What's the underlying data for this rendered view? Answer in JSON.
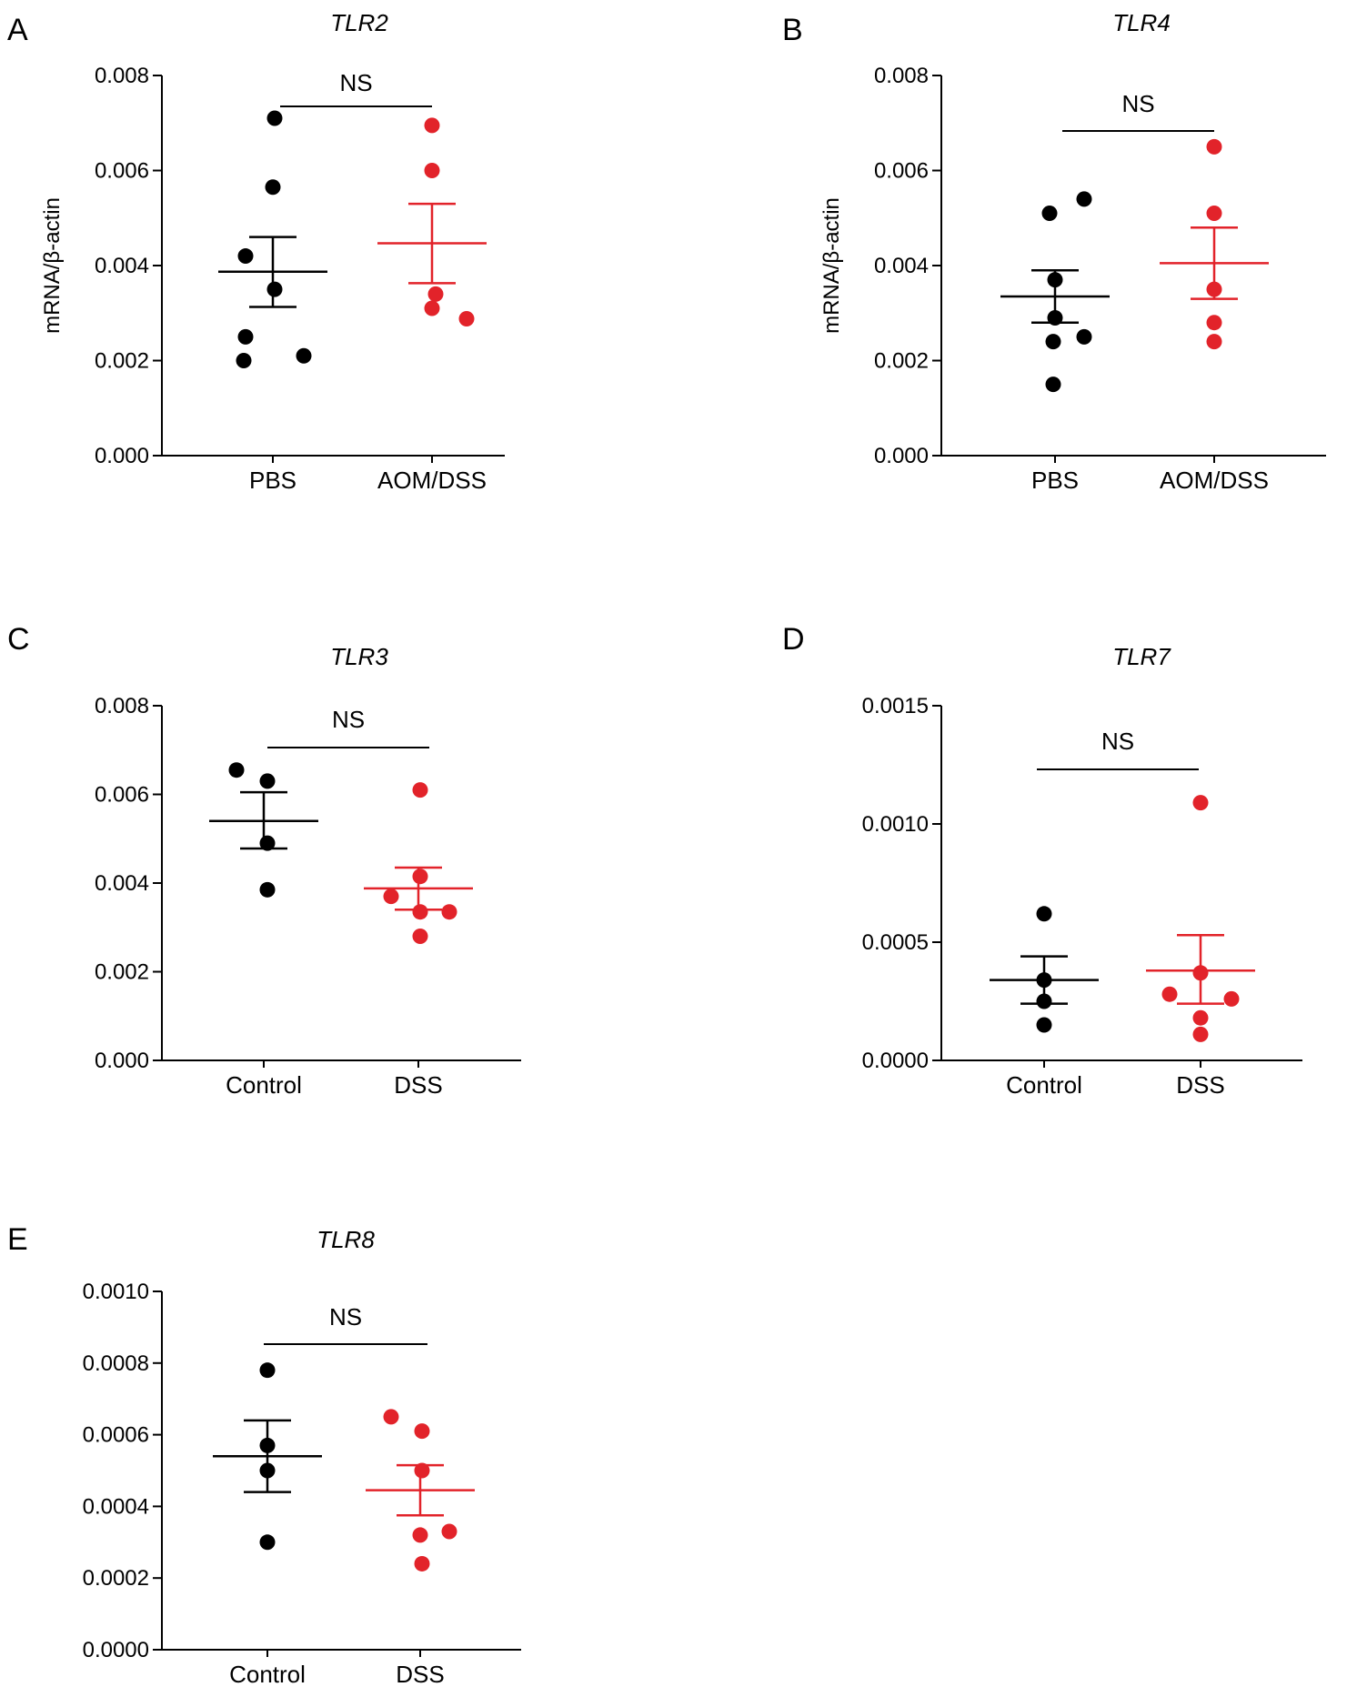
{
  "chart_data": [
    {
      "type": "scatter",
      "panel": "A",
      "title": "TLR2",
      "ylabel": "mRNA/β-actin",
      "categories": [
        "PBS",
        "AOM/DSS"
      ],
      "ylim": [
        0,
        0.008
      ],
      "yticks": [
        "0.000",
        "0.002",
        "0.004",
        "0.006",
        "0.008"
      ],
      "series": [
        {
          "points": [
            0.0071,
            0.00565,
            0.0042,
            0.0035,
            0.0025,
            0.0021,
            0.002
          ],
          "mean": 0.00387,
          "sem": [
            0.00313,
            0.0046
          ]
        },
        {
          "points": [
            0.00695,
            0.006,
            0.0034,
            0.0031,
            0.00288
          ],
          "mean": 0.00447,
          "sem": [
            0.00363,
            0.0053
          ]
        }
      ],
      "significance": "NS",
      "colors": [
        "#000000",
        "#e2232a"
      ]
    },
    {
      "type": "scatter",
      "panel": "B",
      "title": "TLR4",
      "ylabel": "mRNA/β-actin",
      "categories": [
        "PBS",
        "AOM/DSS"
      ],
      "ylim": [
        0,
        0.008
      ],
      "yticks": [
        "0.000",
        "0.002",
        "0.004",
        "0.006",
        "0.008"
      ],
      "series": [
        {
          "points": [
            0.0054,
            0.0051,
            0.0037,
            0.0029,
            0.0025,
            0.0024,
            0.0015
          ],
          "mean": 0.00335,
          "sem": [
            0.0028,
            0.0039
          ]
        },
        {
          "points": [
            0.0065,
            0.0051,
            0.0035,
            0.0028,
            0.0024
          ],
          "mean": 0.00405,
          "sem": [
            0.0033,
            0.0048
          ]
        }
      ],
      "significance": "NS",
      "colors": [
        "#000000",
        "#e2232a"
      ]
    },
    {
      "type": "scatter",
      "panel": "C",
      "title": "TLR3",
      "ylabel": "",
      "categories": [
        "Control",
        "DSS"
      ],
      "ylim": [
        0,
        0.008
      ],
      "yticks": [
        "0.000",
        "0.002",
        "0.004",
        "0.006",
        "0.008"
      ],
      "series": [
        {
          "points": [
            0.00655,
            0.0063,
            0.0049,
            0.00385
          ],
          "mean": 0.0054,
          "sem": [
            0.00478,
            0.00605
          ]
        },
        {
          "points": [
            0.0061,
            0.00415,
            0.0037,
            0.00335,
            0.00335,
            0.0028
          ],
          "mean": 0.00388,
          "sem": [
            0.0034,
            0.00435
          ]
        }
      ],
      "significance": "NS",
      "colors": [
        "#000000",
        "#e2232a"
      ]
    },
    {
      "type": "scatter",
      "panel": "D",
      "title": "TLR7",
      "ylabel": "",
      "categories": [
        "Control",
        "DSS"
      ],
      "ylim": [
        0,
        0.0015
      ],
      "yticks": [
        "0.0000",
        "0.0005",
        "0.0010",
        "0.0015"
      ],
      "series": [
        {
          "points": [
            0.00062,
            0.00034,
            0.00025,
            0.00015
          ],
          "mean": 0.00034,
          "sem": [
            0.00024,
            0.00044
          ]
        },
        {
          "points": [
            0.00109,
            0.00037,
            0.00028,
            0.00026,
            0.00018,
            0.00011
          ],
          "mean": 0.00038,
          "sem": [
            0.00024,
            0.00053
          ]
        }
      ],
      "significance": "NS",
      "colors": [
        "#000000",
        "#e2232a"
      ]
    },
    {
      "type": "scatter",
      "panel": "E",
      "title": "TLR8",
      "ylabel": "",
      "categories": [
        "Control",
        "DSS"
      ],
      "ylim": [
        0,
        0.001
      ],
      "yticks": [
        "0.0000",
        "0.0002",
        "0.0004",
        "0.0006",
        "0.0008",
        "0.0010"
      ],
      "series": [
        {
          "points": [
            0.00078,
            0.00057,
            0.0005,
            0.0003
          ],
          "mean": 0.00054,
          "sem": [
            0.00044,
            0.00064
          ]
        },
        {
          "points": [
            0.00065,
            0.00061,
            0.0005,
            0.00033,
            0.00032,
            0.00024
          ],
          "mean": 0.000445,
          "sem": [
            0.000375,
            0.000515
          ]
        }
      ],
      "significance": "NS",
      "colors": [
        "#000000",
        "#e2232a"
      ]
    }
  ]
}
